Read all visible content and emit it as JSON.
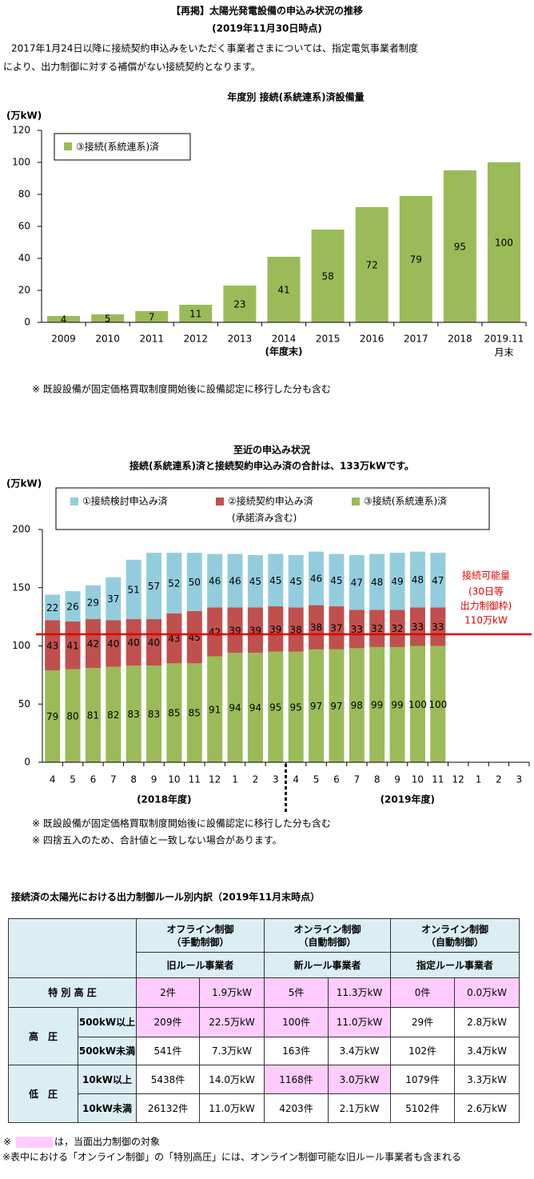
{
  "header": {
    "title": "【再掲】太陽光発電設備の申込み状況の推移",
    "date": "(2019年11月30日時点)",
    "intro": [
      "2017年1月24日以降に接続契約申込みをいただく事業者さまについては、指定電気事業者制度",
      "により、出力制御に対する補償がない接続契約となります。"
    ]
  },
  "chart_data": [
    {
      "type": "bar",
      "title": "年度別 接続(系統連系)済設備量",
      "y_unit": "(万kW)",
      "categories": [
        "2009",
        "2010",
        "2011",
        "2012",
        "2013",
        "2014",
        "2015",
        "2016",
        "2017",
        "2018",
        "2019.11"
      ],
      "category_note": "月末",
      "x_label": "(年度末)",
      "series": [
        {
          "name": "③接続(系統連系)済",
          "color": "#9bbb59",
          "values": [
            4,
            5,
            7,
            11,
            23,
            41,
            58,
            72,
            79,
            95,
            100
          ]
        }
      ],
      "ylim": [
        0,
        120
      ],
      "yticks": [
        0,
        20,
        40,
        60,
        80,
        100,
        120
      ],
      "note": "※ 既設設備が固定価格買取制度開始後に設備認定に移行した分も含む"
    },
    {
      "type": "stacked_bar",
      "title": [
        "至近の申込み状況",
        "接続(系統連系)済と接続契約申込み済の合計は、133万kWです。"
      ],
      "y_unit": "(万kW)",
      "categories": [
        "4",
        "5",
        "6",
        "7",
        "8",
        "9",
        "10",
        "11",
        "12",
        "1",
        "2",
        "3",
        "4",
        "5",
        "6",
        "7",
        "8",
        "9",
        "10",
        "11",
        "12",
        "1",
        "2",
        "3"
      ],
      "fiscal_years": [
        "(2018年度)",
        "(2019年度)"
      ],
      "series": [
        {
          "name": "③接続(系統連系)済",
          "color": "#9bbb59",
          "values": [
            79,
            80,
            81,
            82,
            83,
            83,
            85,
            85,
            91,
            94,
            94,
            95,
            95,
            97,
            97,
            98,
            99,
            99,
            100,
            100,
            null,
            null,
            null,
            null
          ]
        },
        {
          "name": "②接続契約申込み済",
          "color": "#c0504d",
          "values": [
            43,
            41,
            42,
            40,
            40,
            40,
            43,
            45,
            42,
            39,
            39,
            39,
            38,
            38,
            37,
            33,
            32,
            32,
            33,
            33,
            null,
            null,
            null,
            null
          ]
        },
        {
          "name": "①接続検討申込み済",
          "color": "#93cddd",
          "values": [
            22,
            26,
            29,
            37,
            51,
            57,
            52,
            50,
            46,
            46,
            45,
            45,
            45,
            46,
            45,
            47,
            48,
            49,
            48,
            47,
            null,
            null,
            null,
            null
          ]
        }
      ],
      "legend_note": "(承諾済み含む)",
      "ylim": [
        0,
        200
      ],
      "yticks": [
        0,
        50,
        100,
        150,
        200
      ],
      "reference_line": {
        "value": 110,
        "color": "#e00000",
        "label": [
          "接続可能量",
          "(30日等",
          "出力制御枠)",
          "110万kW"
        ]
      },
      "notes": [
        "※ 既設設備が固定価格買取制度開始後に設備認定に移行した分も含む",
        "※ 四捨五入のため、合計値と一致しない場合があります。"
      ]
    }
  ],
  "table": {
    "title": "接続済の太陽光における出力制御ルール別内訳（2019年11月末時点）",
    "group_headers": [
      [
        "オフライン制御",
        "（手動制御）"
      ],
      [
        "オンライン制御",
        "（自動制御）"
      ],
      [
        "オンライン制御",
        "（自動制御）"
      ]
    ],
    "rule_headers": [
      "旧ルール事業者",
      "新ルール事業者",
      "指定ルール事業者"
    ],
    "rows": [
      {
        "group": "特 別 高 圧",
        "cells": [
          "2件",
          "1.9万kW",
          "5件",
          "11.3万kW",
          "0件",
          "0.0万kW"
        ],
        "highlight": [
          true,
          true,
          true,
          true,
          true,
          true
        ]
      },
      {
        "group": "高　圧",
        "sub": "500kW以上",
        "cells": [
          "209件",
          "22.5万kW",
          "100件",
          "11.0万kW",
          "29件",
          "2.8万kW"
        ],
        "highlight": [
          true,
          true,
          true,
          true,
          false,
          false
        ]
      },
      {
        "sub": "500kW未満",
        "cells": [
          "541件",
          "7.3万kW",
          "163件",
          "3.4万kW",
          "102件",
          "3.4万kW"
        ],
        "highlight": [
          false,
          false,
          false,
          false,
          false,
          false
        ]
      },
      {
        "group": "低　圧",
        "sub": "10kW以上",
        "cells": [
          "5438件",
          "14.0万kW",
          "1168件",
          "3.0万kW",
          "1079件",
          "3.3万kW"
        ],
        "highlight": [
          false,
          false,
          true,
          true,
          false,
          false
        ]
      },
      {
        "sub": "10kW未満",
        "cells": [
          "26132件",
          "11.0万kW",
          "4203件",
          "2.1万kW",
          "5102件",
          "2.6万kW"
        ],
        "highlight": [
          false,
          false,
          false,
          false,
          false,
          false
        ]
      }
    ],
    "header_color": "#dbeef4",
    "highlight_color": "#ffccff"
  },
  "footer": {
    "marker": "※",
    "highlight_note": "は，当面出力制御の対象",
    "note": "※表中における「オンライン制御」の「特別高圧」には、オンライン制御可能な旧ルール事業者も含まれる"
  }
}
